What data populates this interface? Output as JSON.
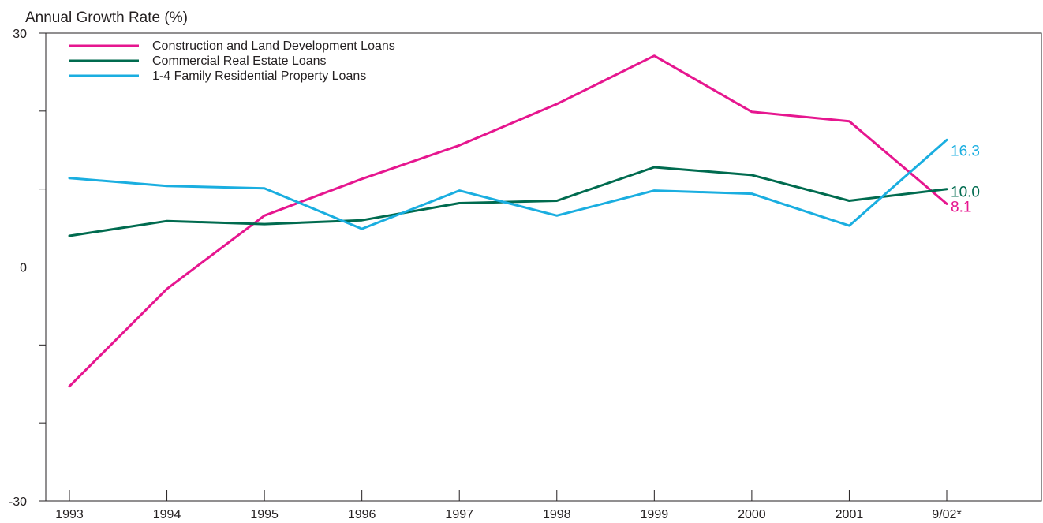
{
  "chart_data": {
    "type": "line",
    "ylabel": "Annual Growth Rate (%)",
    "categories": [
      "1993",
      "1994",
      "1995",
      "1996",
      "1997",
      "1998",
      "1999",
      "2000",
      "2001",
      "9/02*"
    ],
    "ylim": [
      -30,
      30
    ],
    "y_tick_values": [
      -30,
      -20,
      -10,
      0,
      10,
      20,
      30
    ],
    "y_tick_labels": [
      "-30",
      "",
      "",
      "0",
      "",
      "",
      "30"
    ],
    "zero_line": true,
    "legend_position": "top-left",
    "series": [
      {
        "name": "Construction and Land Development Loans",
        "color": "#e6168f",
        "values": [
          -15.3,
          -2.8,
          6.6,
          11.3,
          15.6,
          20.9,
          27.1,
          19.9,
          18.7,
          8.1
        ],
        "end_label": "8.1"
      },
      {
        "name": "Commercial Real Estate Loans",
        "color": "#006b4f",
        "values": [
          4.0,
          5.9,
          5.5,
          6.0,
          8.2,
          8.5,
          12.8,
          11.8,
          8.5,
          10.0
        ],
        "end_label": "10.0"
      },
      {
        "name": "1-4 Family Residential Property Loans",
        "color": "#1aaee0",
        "values": [
          11.4,
          10.4,
          10.1,
          4.9,
          9.8,
          6.6,
          9.8,
          9.4,
          5.3,
          16.3
        ],
        "end_label": "16.3"
      }
    ]
  }
}
